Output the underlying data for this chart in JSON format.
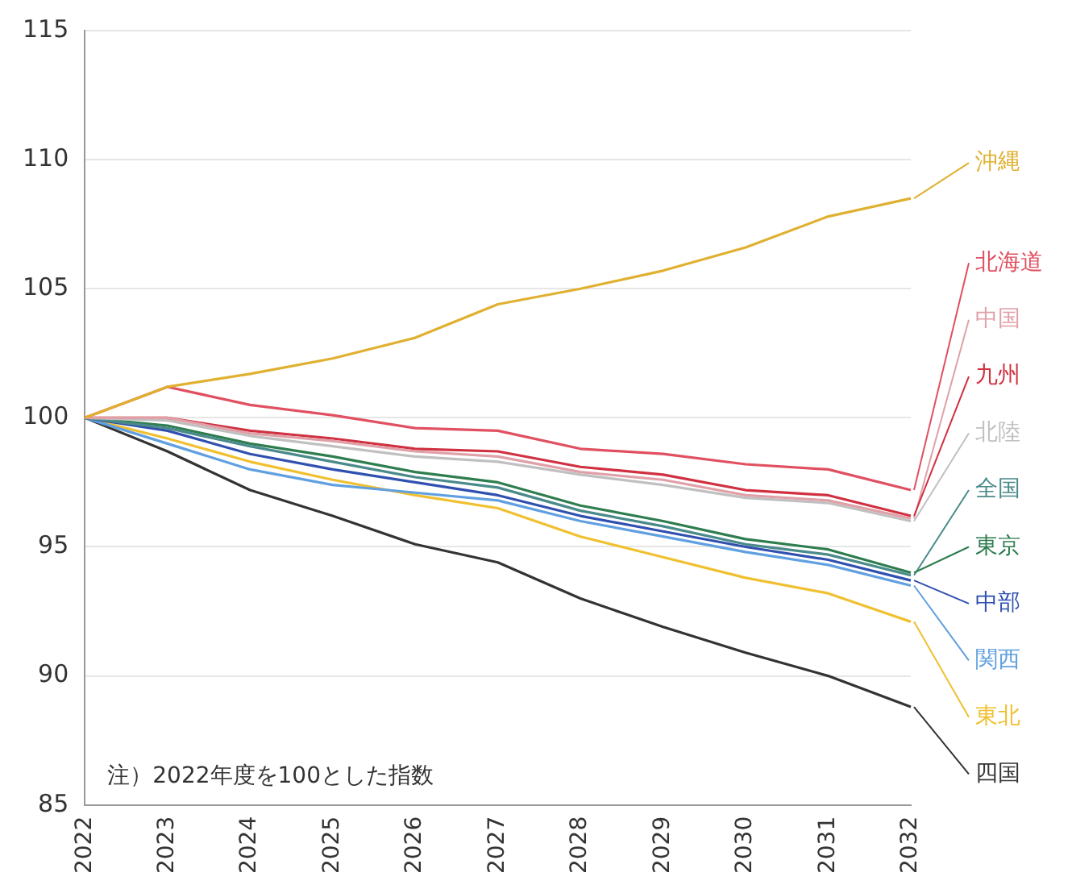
{
  "chart_data": {
    "type": "line",
    "categories": [
      "2022",
      "2023",
      "2024",
      "2025",
      "2026",
      "2027",
      "2028",
      "2029",
      "2030",
      "2031",
      "2032"
    ],
    "series": [
      {
        "name": "沖縄",
        "color": "#e0b030",
        "values": [
          100,
          101.2,
          101.7,
          102.3,
          103.1,
          104.4,
          105.0,
          105.7,
          106.6,
          107.8,
          108.5
        ]
      },
      {
        "name": "北海道",
        "color": "#e05060",
        "values": [
          100,
          101.2,
          100.5,
          100.1,
          99.6,
          99.5,
          98.8,
          98.6,
          98.2,
          98.0,
          97.2
        ]
      },
      {
        "name": "中国",
        "color": "#e0a0a8",
        "values": [
          100,
          100.0,
          99.4,
          99.1,
          98.7,
          98.5,
          97.9,
          97.6,
          97.0,
          96.8,
          96.1
        ]
      },
      {
        "name": "九州",
        "color": "#d03040",
        "values": [
          100,
          100.0,
          99.5,
          99.2,
          98.8,
          98.7,
          98.1,
          97.8,
          97.2,
          97.0,
          96.2
        ]
      },
      {
        "name": "北陸",
        "color": "#c0c0c0",
        "values": [
          100,
          99.9,
          99.3,
          98.9,
          98.5,
          98.3,
          97.8,
          97.4,
          96.9,
          96.7,
          96.0
        ]
      },
      {
        "name": "全国",
        "color": "#4a8a8a",
        "values": [
          100,
          99.6,
          98.9,
          98.3,
          97.7,
          97.3,
          96.4,
          95.8,
          95.1,
          94.7,
          93.9
        ]
      },
      {
        "name": "東京",
        "color": "#2e7d4f",
        "values": [
          100,
          99.7,
          99.0,
          98.5,
          97.9,
          97.5,
          96.6,
          96.0,
          95.3,
          94.9,
          94.0
        ]
      },
      {
        "name": "中部",
        "color": "#3050b0",
        "values": [
          100,
          99.5,
          98.6,
          98.0,
          97.5,
          97.0,
          96.2,
          95.6,
          95.0,
          94.5,
          93.7
        ]
      },
      {
        "name": "関西",
        "color": "#60a0e0",
        "values": [
          100,
          99.0,
          98.0,
          97.4,
          97.1,
          96.8,
          96.0,
          95.4,
          94.8,
          94.3,
          93.5
        ]
      },
      {
        "name": "東北",
        "color": "#f0c030",
        "values": [
          100,
          99.2,
          98.3,
          97.6,
          97.0,
          96.5,
          95.4,
          94.6,
          93.8,
          93.2,
          92.1
        ]
      },
      {
        "name": "四国",
        "color": "#333333",
        "values": [
          100,
          98.7,
          97.2,
          96.2,
          95.1,
          94.4,
          93.0,
          91.9,
          90.9,
          90.0,
          88.8
        ]
      }
    ],
    "ylim": [
      85,
      115
    ],
    "yticks": [
      85,
      90,
      95,
      100,
      105,
      110,
      115
    ],
    "grid": "y",
    "legend": "right",
    "annotations": [
      "注）2022年度を100とした指数"
    ]
  }
}
